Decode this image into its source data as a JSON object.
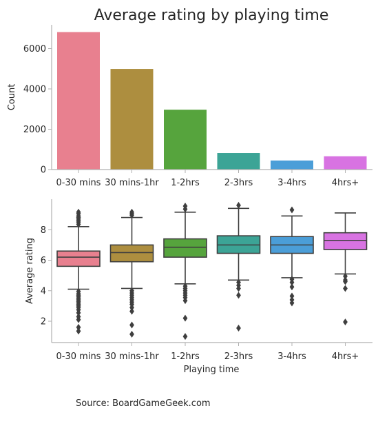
{
  "title": "Average rating by playing time",
  "source": "Source: BoardGameGeek.com",
  "chart_data": [
    {
      "type": "bar",
      "categories": [
        "0-30 mins",
        "30 mins-1hr",
        "1-2hrs",
        "2-3hrs",
        "3-4hrs",
        "4hrs+"
      ],
      "values": [
        6820,
        4990,
        2970,
        820,
        450,
        660
      ],
      "colors": [
        "#e8808f",
        "#ad8e3f",
        "#56a43d",
        "#3ca496",
        "#4b9ed8",
        "#d873e2"
      ],
      "xlabel": "",
      "ylabel": "Count",
      "ylim": [
        0,
        7180
      ],
      "yticks": [
        0,
        2000,
        4000,
        6000
      ],
      "grid": false
    },
    {
      "type": "box",
      "categories": [
        "0-30 mins",
        "30 mins-1hr",
        "1-2hrs",
        "2-3hrs",
        "3-4hrs",
        "4hrs+"
      ],
      "colors": [
        "#e8808f",
        "#ad8e3f",
        "#56a43d",
        "#3ca496",
        "#4b9ed8",
        "#d873e2"
      ],
      "xlabel": "Playing time",
      "ylabel": "Average rating",
      "ylim": [
        0.6,
        10.0
      ],
      "yticks": [
        2,
        4,
        6,
        8
      ],
      "grid": false,
      "boxes": [
        {
          "whisker_low": 4.1,
          "q1": 5.6,
          "median": 6.2,
          "q3": 6.6,
          "whisker_high": 8.2,
          "outliers": [
            8.35,
            8.5,
            8.6,
            8.7,
            8.8,
            8.9,
            9.05,
            9.15,
            3.95,
            3.8,
            3.7,
            3.6,
            3.5,
            3.4,
            3.3,
            3.2,
            3.1,
            3.0,
            2.9,
            2.75,
            2.55,
            2.3,
            2.1,
            1.6,
            1.35
          ]
        },
        {
          "whisker_low": 4.15,
          "q1": 5.9,
          "median": 6.5,
          "q3": 7.0,
          "whisker_high": 8.8,
          "outliers": [
            8.95,
            9.05,
            9.15,
            4.0,
            3.85,
            3.7,
            3.55,
            3.4,
            3.25,
            3.1,
            2.9,
            2.65,
            1.75,
            1.15
          ]
        },
        {
          "whisker_low": 4.45,
          "q1": 6.2,
          "median": 6.85,
          "q3": 7.4,
          "whisker_high": 9.15,
          "outliers": [
            9.35,
            9.55,
            4.3,
            4.15,
            4.0,
            3.85,
            3.7,
            3.55,
            3.35,
            2.2,
            1.0
          ]
        },
        {
          "whisker_low": 4.7,
          "q1": 6.45,
          "median": 7.0,
          "q3": 7.6,
          "whisker_high": 9.4,
          "outliers": [
            9.6,
            4.55,
            4.35,
            4.15,
            3.7,
            1.55
          ]
        },
        {
          "whisker_low": 4.85,
          "q1": 6.45,
          "median": 7.0,
          "q3": 7.55,
          "whisker_high": 8.9,
          "outliers": [
            9.3,
            4.75,
            4.55,
            4.25,
            3.65,
            3.4,
            3.2
          ]
        },
        {
          "whisker_low": 5.1,
          "q1": 6.7,
          "median": 7.3,
          "q3": 7.8,
          "whisker_high": 9.1,
          "outliers": [
            4.95,
            4.7,
            4.6,
            4.15,
            1.95
          ]
        }
      ]
    }
  ]
}
